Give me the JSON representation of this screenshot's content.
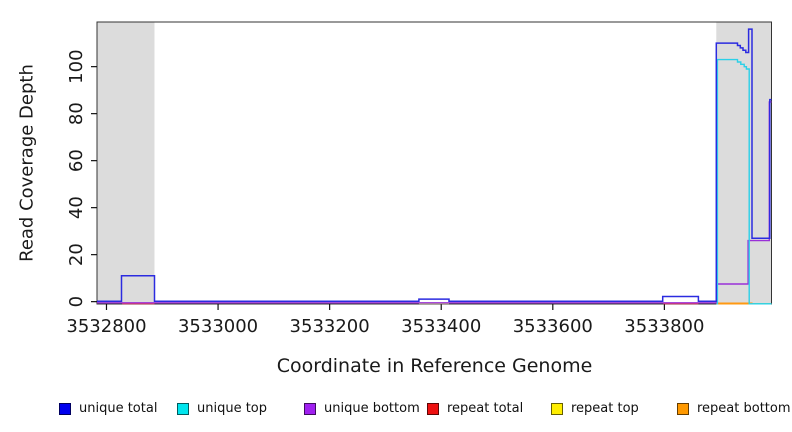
{
  "chart_data": {
    "type": "line",
    "title": "",
    "xlabel": "Coordinate in Reference Genome",
    "ylabel": "Read Coverage Depth",
    "xlim": [
      3532783,
      3533992
    ],
    "ylim": [
      -1,
      119
    ],
    "x_ticks": [
      3532800,
      3533000,
      3533200,
      3533400,
      3533600,
      3533800
    ],
    "y_ticks": [
      0,
      20,
      40,
      60,
      80,
      100
    ],
    "grid": false,
    "legend_position": "bottom",
    "highlight_regions": [
      {
        "name": "left-gray-band",
        "x1": 3532783,
        "x2": 3532886,
        "color": "#DCDCDC"
      },
      {
        "name": "right-gray-band",
        "x1": 3533893,
        "x2": 3533992,
        "color": "#DCDCDC"
      }
    ],
    "series": [
      {
        "name": "unique bottom",
        "color": "#9A30D8",
        "width": 1.4,
        "points": [
          [
            3532783,
            -0.5
          ],
          [
            3533893,
            7.5
          ],
          [
            3533950,
            26
          ],
          [
            3533988,
            85
          ]
        ]
      },
      {
        "name": "unique top",
        "color": "#2BD0E8",
        "width": 1.4,
        "points": [
          [
            3533893.5,
            -0.9
          ],
          [
            3533895,
            103
          ],
          [
            3533931,
            102
          ],
          [
            3533937,
            101
          ],
          [
            3533943,
            100
          ],
          [
            3533947,
            99
          ],
          [
            3533952,
            -0.9
          ]
        ]
      },
      {
        "name": "unique total",
        "color": "#2B2BE0",
        "width": 1.5,
        "points": [
          [
            3532783,
            0.2
          ],
          [
            3532827,
            11
          ],
          [
            3532886,
            0.2
          ],
          [
            3533360,
            1.1
          ],
          [
            3533414,
            0.2
          ],
          [
            3533797,
            2.2
          ],
          [
            3533861,
            0.2
          ],
          [
            3533893,
            110
          ],
          [
            3533931,
            109
          ],
          [
            3533936,
            108
          ],
          [
            3533941,
            107
          ],
          [
            3533946,
            106
          ],
          [
            3533951,
            116
          ],
          [
            3533957,
            27
          ],
          [
            3533989,
            86
          ]
        ]
      }
    ],
    "accent_segments": [
      {
        "name": "repeat-total-under-left-bump",
        "color": "#EE3344",
        "width": 1.3,
        "x1": 3532828,
        "x2": 3532886,
        "v": -0.85
      },
      {
        "name": "repeat-top-under-mid-bump",
        "color": "#BFBF70",
        "width": 1.2,
        "x1": 3533360,
        "x2": 3533414,
        "v": -0.8
      },
      {
        "name": "repeat-total-under-right-bump",
        "color": "#EE3344",
        "width": 1.3,
        "x1": 3533798,
        "x2": 3533861,
        "v": -0.85
      },
      {
        "name": "repeat-bottom-under-peak",
        "color": "#FF9912",
        "width": 2.0,
        "x1": 3533893,
        "x2": 3533958,
        "v": -0.8
      },
      {
        "name": "repeat-top-peak-tail",
        "color": "#8FD88F",
        "width": 1.5,
        "x1": 3533958,
        "x2": 3533992,
        "v": -0.9
      }
    ]
  },
  "legend": {
    "items": [
      {
        "label": "unique total",
        "color": "#0000EE"
      },
      {
        "label": "unique top",
        "color": "#00E5EE"
      },
      {
        "label": "unique bottom",
        "color": "#A020F0"
      },
      {
        "label": "repeat total",
        "color": "#EE1111"
      },
      {
        "label": "repeat top",
        "color": "#FFEE00"
      },
      {
        "label": "repeat bottom",
        "color": "#FF9900"
      }
    ]
  }
}
